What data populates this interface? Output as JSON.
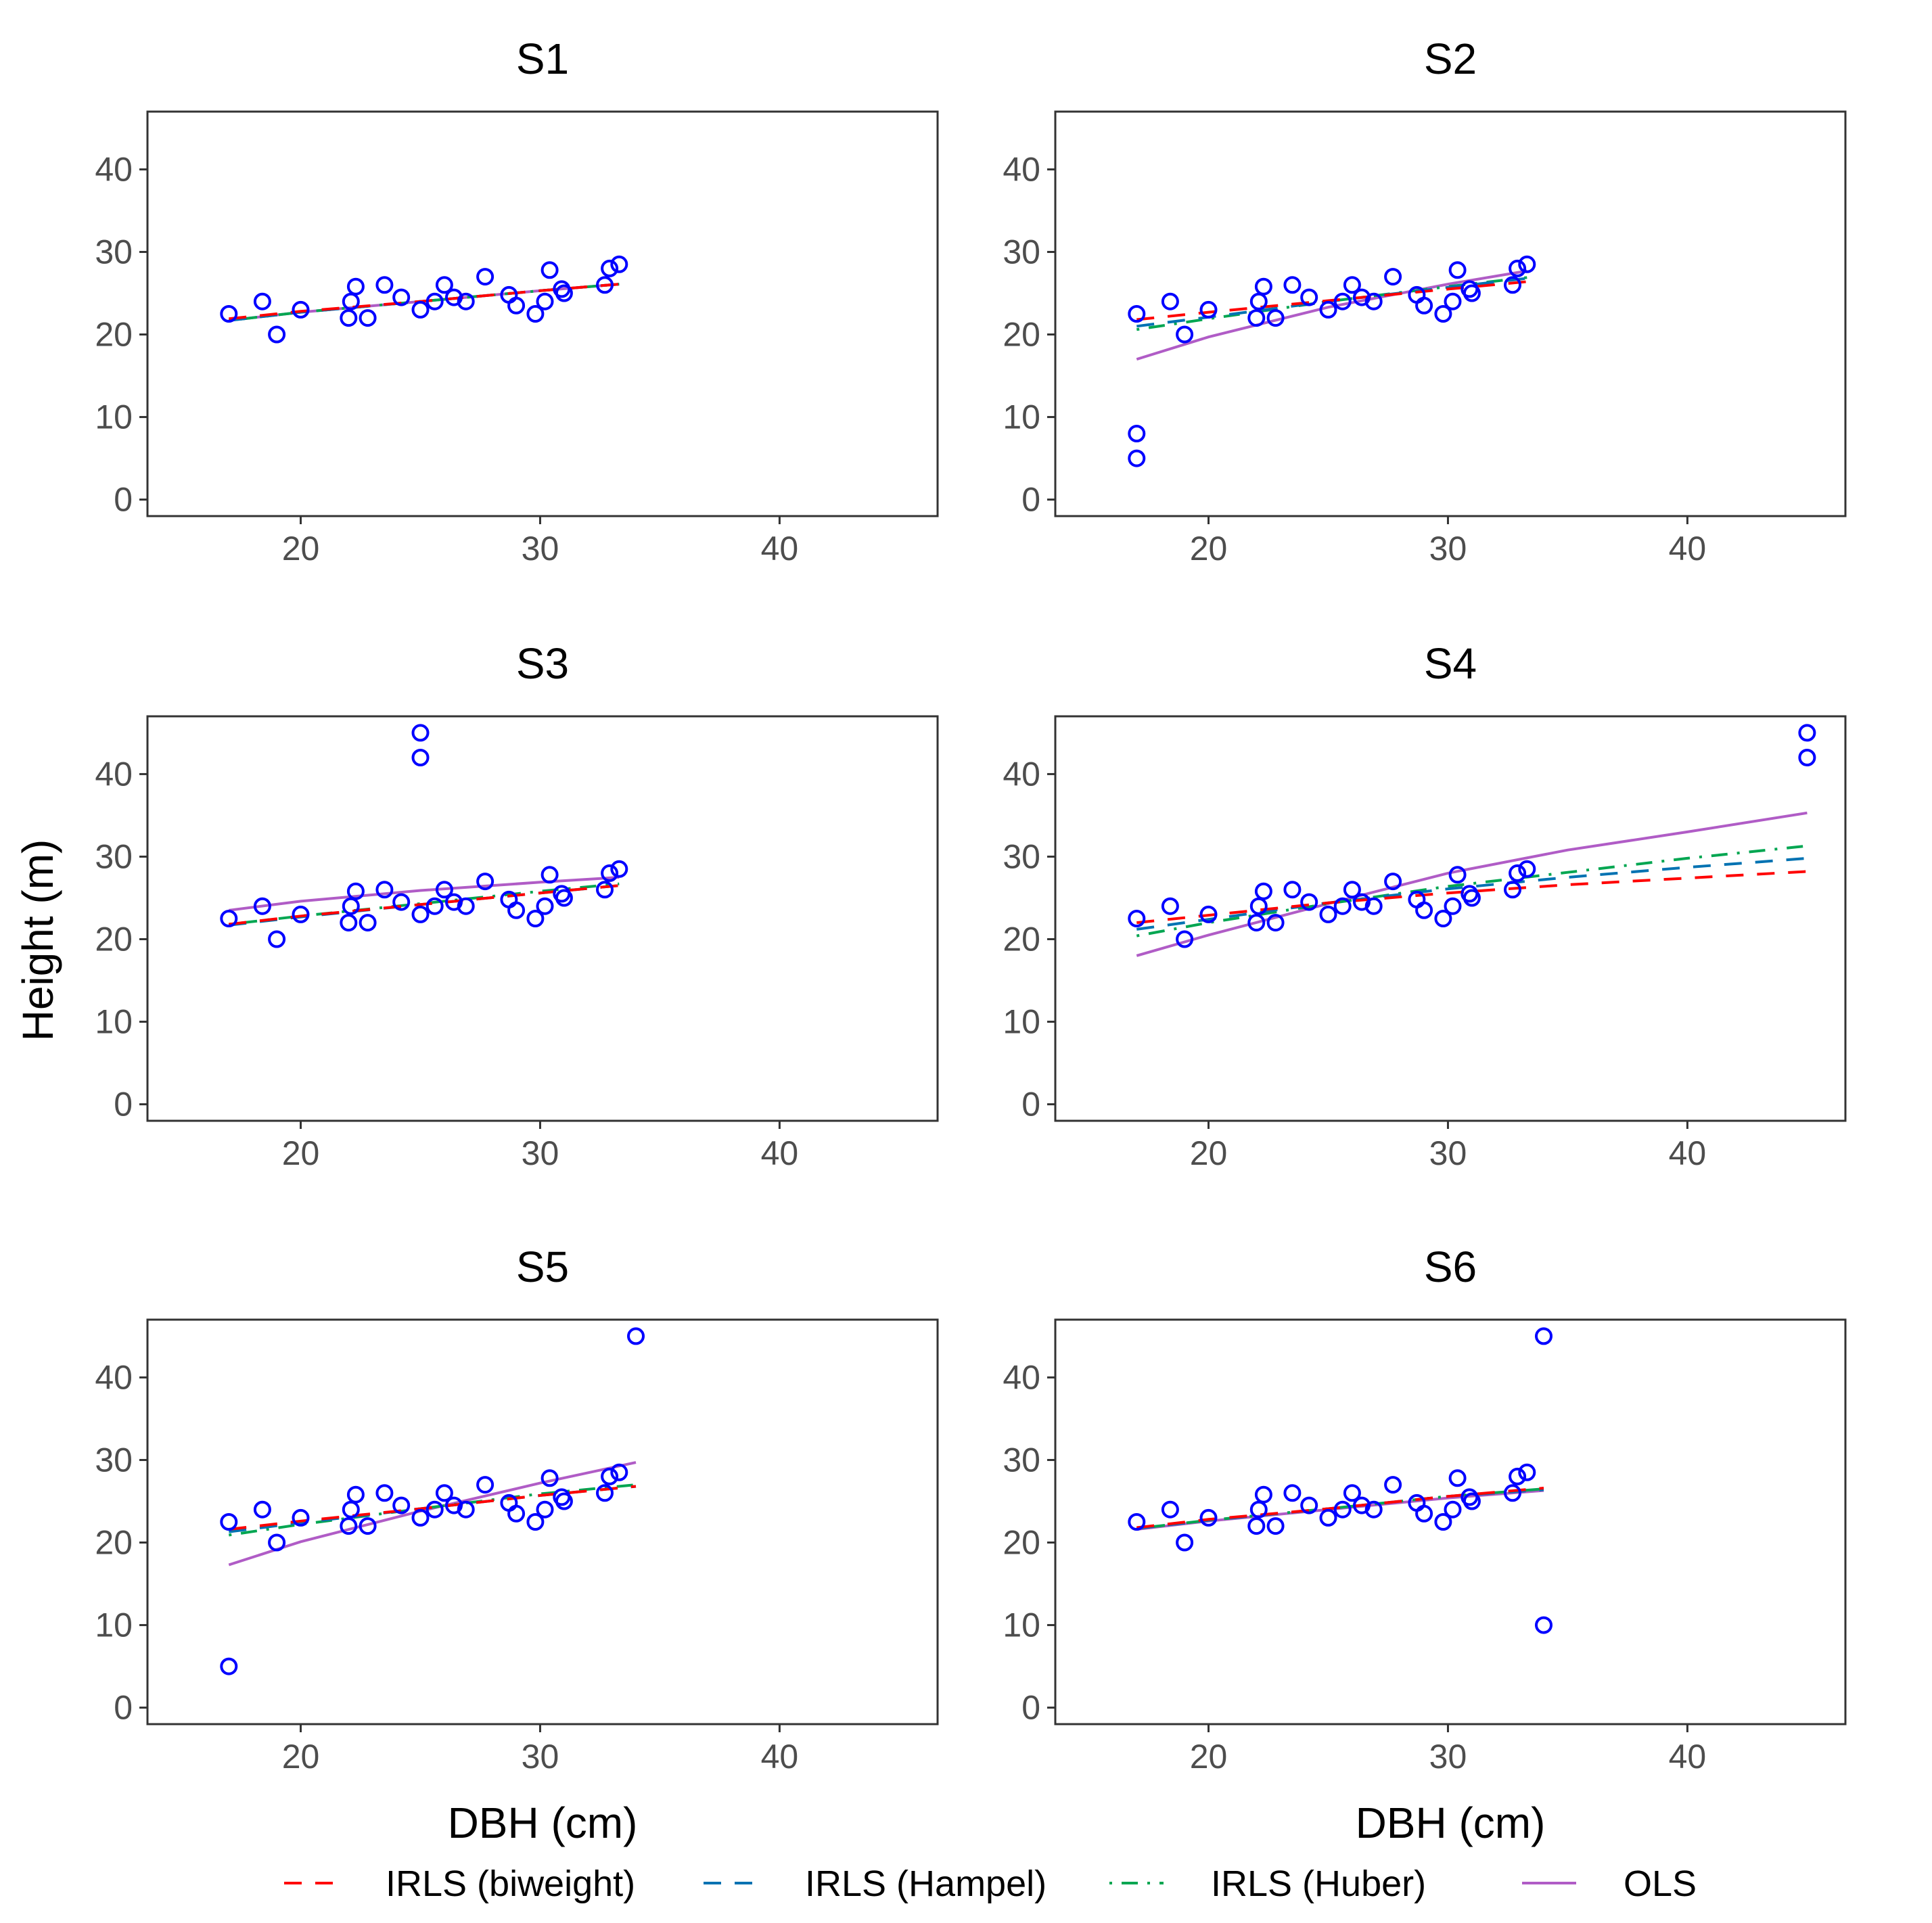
{
  "chart_data": {
    "type": "scatter",
    "xlabel": "DBH (cm)",
    "ylabel": "Height (m)",
    "xlim": [
      13.6,
      46.6
    ],
    "ylim": [
      -2.0,
      47.0
    ],
    "x_ticks": [
      20,
      30,
      40
    ],
    "y_ticks": [
      0,
      10,
      20,
      30,
      40
    ],
    "grid": false,
    "legend_position": "bottom",
    "colors": {
      "points": "#0000ff",
      "IRLS (biweight)": "#ff0000",
      "IRLS (Hampel)": "#0072b2",
      "IRLS (Huber)": "#00a651",
      "OLS": "#b05cc6"
    },
    "legend": [
      {
        "label": "IRLS (biweight)",
        "color": "#ff0000",
        "dash": "long"
      },
      {
        "label": "IRLS (Hampel)",
        "color": "#0072b2",
        "dash": "long"
      },
      {
        "label": "IRLS (Huber)",
        "color": "#00a651",
        "dash": "dotdash"
      },
      {
        "label": "OLS",
        "color": "#b05cc6",
        "dash": "solid"
      }
    ],
    "base_points": [
      [
        17.0,
        22.5
      ],
      [
        18.4,
        24.0
      ],
      [
        19.0,
        20.0
      ],
      [
        20.0,
        23.0
      ],
      [
        22.0,
        22.0
      ],
      [
        22.1,
        24.0
      ],
      [
        22.3,
        25.8
      ],
      [
        22.8,
        22.0
      ],
      [
        23.5,
        26.0
      ],
      [
        24.2,
        24.5
      ],
      [
        25.0,
        23.0
      ],
      [
        25.6,
        24.0
      ],
      [
        26.0,
        26.0
      ],
      [
        26.4,
        24.5
      ],
      [
        26.9,
        24.0
      ],
      [
        27.7,
        27.0
      ],
      [
        28.7,
        24.8
      ],
      [
        29.0,
        23.5
      ],
      [
        29.8,
        22.5
      ],
      [
        30.2,
        24.0
      ],
      [
        30.4,
        27.8
      ],
      [
        30.9,
        25.5
      ],
      [
        31.0,
        25.0
      ],
      [
        32.7,
        26.0
      ],
      [
        32.9,
        28.0
      ],
      [
        33.3,
        28.5
      ]
    ],
    "panels": [
      {
        "title": "S1",
        "outliers": [],
        "series": [
          {
            "name": "IRLS (biweight)",
            "x": [
              17.0,
              20.0,
              25.0,
              30.0,
              33.3
            ],
            "y": [
              21.9,
              22.8,
              24.0,
              25.3,
              26.1
            ]
          },
          {
            "name": "IRLS (Hampel)",
            "x": [
              17.0,
              20.0,
              25.0,
              30.0,
              33.3
            ],
            "y": [
              21.7,
              22.7,
              24.0,
              25.3,
              26.1
            ]
          },
          {
            "name": "IRLS (Huber)",
            "x": [
              17.0,
              20.0,
              25.0,
              30.0,
              33.3
            ],
            "y": [
              21.7,
              22.7,
              24.0,
              25.3,
              26.1
            ]
          },
          {
            "name": "OLS",
            "x": [
              17.0,
              20.0,
              25.0,
              30.0,
              33.3
            ],
            "y": [
              21.7,
              22.7,
              24.0,
              25.3,
              26.1
            ]
          }
        ]
      },
      {
        "title": "S2",
        "outliers": [
          [
            17.0,
            8.0
          ],
          [
            17.0,
            5.0
          ]
        ],
        "series": [
          {
            "name": "IRLS (biweight)",
            "x": [
              17.0,
              20.0,
              25.0,
              30.0,
              33.3
            ],
            "y": [
              21.8,
              22.7,
              24.1,
              25.5,
              26.4
            ]
          },
          {
            "name": "IRLS (Hampel)",
            "x": [
              17.0,
              20.0,
              25.0,
              30.0,
              33.3
            ],
            "y": [
              21.0,
              22.1,
              24.0,
              25.7,
              26.8
            ]
          },
          {
            "name": "IRLS (Huber)",
            "x": [
              17.0,
              20.0,
              25.0,
              30.0,
              33.3
            ],
            "y": [
              20.6,
              21.9,
              24.0,
              25.8,
              26.9
            ]
          },
          {
            "name": "OLS",
            "x": [
              17.0,
              20.0,
              25.0,
              30.0,
              33.3
            ],
            "y": [
              17.0,
              19.7,
              23.3,
              26.1,
              27.7
            ]
          }
        ]
      },
      {
        "title": "S3",
        "outliers": [
          [
            25.0,
            45.0
          ],
          [
            25.0,
            42.0
          ]
        ],
        "series": [
          {
            "name": "IRLS (biweight)",
            "x": [
              17.0,
              20.0,
              25.0,
              30.0,
              33.3
            ],
            "y": [
              21.8,
              22.8,
              24.2,
              25.6,
              26.5
            ]
          },
          {
            "name": "IRLS (Hampel)",
            "x": [
              17.0,
              20.0,
              25.0,
              30.0,
              33.3
            ],
            "y": [
              21.7,
              22.7,
              24.2,
              25.6,
              26.5
            ]
          },
          {
            "name": "IRLS (Huber)",
            "x": [
              17.0,
              20.0,
              25.0,
              30.0,
              33.3
            ],
            "y": [
              21.8,
              22.8,
              24.3,
              25.8,
              26.7
            ]
          },
          {
            "name": "OLS",
            "x": [
              17.0,
              20.0,
              25.0,
              30.0,
              33.3
            ],
            "y": [
              23.5,
              24.6,
              25.9,
              26.9,
              27.5
            ]
          }
        ]
      },
      {
        "title": "S4",
        "outliers": [
          [
            45.0,
            45.0
          ],
          [
            45.0,
            42.0
          ]
        ],
        "series": [
          {
            "name": "IRLS (biweight)",
            "x": [
              17.0,
              20.0,
              25.0,
              30.0,
              35.0,
              40.0,
              45.0
            ],
            "y": [
              22.0,
              22.9,
              24.4,
              25.6,
              26.6,
              27.4,
              28.2
            ]
          },
          {
            "name": "IRLS (Hampel)",
            "x": [
              17.0,
              20.0,
              25.0,
              30.0,
              35.0,
              40.0,
              45.0
            ],
            "y": [
              21.2,
              22.4,
              24.4,
              26.1,
              27.5,
              28.7,
              29.8
            ]
          },
          {
            "name": "IRLS (Huber)",
            "x": [
              17.0,
              20.0,
              25.0,
              30.0,
              35.0,
              40.0,
              45.0
            ],
            "y": [
              20.4,
              22.0,
              24.3,
              26.4,
              28.1,
              29.8,
              31.3
            ]
          },
          {
            "name": "OLS",
            "x": [
              17.0,
              20.0,
              25.0,
              30.0,
              35.0,
              40.0,
              45.0
            ],
            "y": [
              18.0,
              20.5,
              24.3,
              28.0,
              30.8,
              33.0,
              35.3
            ]
          }
        ]
      },
      {
        "title": "S5",
        "outliers": [
          [
            17.0,
            5.0
          ],
          [
            34.0,
            45.0
          ]
        ],
        "series": [
          {
            "name": "IRLS (biweight)",
            "x": [
              17.0,
              20.0,
              25.0,
              30.0,
              34.0
            ],
            "y": [
              21.6,
              22.6,
              24.1,
              25.7,
              26.8
            ]
          },
          {
            "name": "IRLS (Hampel)",
            "x": [
              17.0,
              20.0,
              25.0,
              30.0,
              34.0
            ],
            "y": [
              21.3,
              22.4,
              24.1,
              25.7,
              26.8
            ]
          },
          {
            "name": "IRLS (Huber)",
            "x": [
              17.0,
              20.0,
              25.0,
              30.0,
              34.0
            ],
            "y": [
              20.9,
              22.2,
              24.1,
              25.9,
              27.0
            ]
          },
          {
            "name": "OLS",
            "x": [
              17.0,
              20.0,
              25.0,
              30.0,
              34.0
            ],
            "y": [
              17.3,
              20.1,
              23.8,
              27.2,
              29.7
            ]
          }
        ]
      },
      {
        "title": "S6",
        "outliers": [
          [
            34.0,
            45.0
          ],
          [
            34.0,
            10.0
          ]
        ],
        "series": [
          {
            "name": "IRLS (biweight)",
            "x": [
              17.0,
              20.0,
              25.0,
              30.0,
              34.0
            ],
            "y": [
              21.8,
              22.8,
              24.1,
              25.6,
              26.6
            ]
          },
          {
            "name": "IRLS (Hampel)",
            "x": [
              17.0,
              20.0,
              25.0,
              30.0,
              34.0
            ],
            "y": [
              21.7,
              22.7,
              24.1,
              25.6,
              26.4
            ]
          },
          {
            "name": "IRLS (Huber)",
            "x": [
              17.0,
              20.0,
              25.0,
              30.0,
              34.0
            ],
            "y": [
              21.7,
              22.7,
              24.1,
              25.6,
              26.5
            ]
          },
          {
            "name": "OLS",
            "x": [
              17.0,
              20.0,
              25.0,
              30.0,
              34.0
            ],
            "y": [
              21.6,
              22.6,
              24.0,
              25.4,
              26.3
            ]
          }
        ]
      }
    ]
  }
}
